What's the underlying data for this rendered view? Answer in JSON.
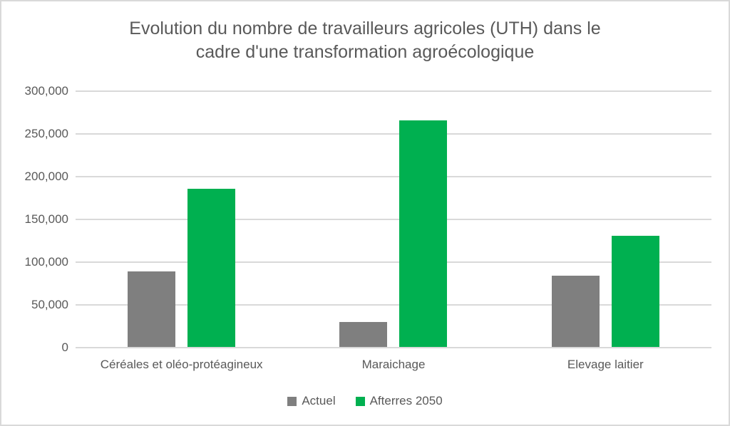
{
  "chart_data": {
    "type": "bar",
    "title": "Evolution du nombre de travailleurs agricoles (UTH) dans le cadre d'une transformation agroécologique",
    "title_lines": [
      "Evolution du nombre de travailleurs agricoles (UTH) dans le",
      "cadre d'une transformation agroécologique"
    ],
    "categories": [
      "Céréales et oléo-protéagineux",
      "Maraichage",
      "Elevage laitier"
    ],
    "series": [
      {
        "name": "Actuel",
        "color": "#7f7f7f",
        "values": [
          88000,
          29000,
          83000
        ]
      },
      {
        "name": "Afterres 2050",
        "color": "#00b050",
        "values": [
          185000,
          265000,
          130000
        ]
      }
    ],
    "xlabel": "",
    "ylabel": "",
    "ylim": [
      0,
      300000
    ],
    "ytick_step": 50000,
    "ytick_labels": [
      "0",
      "50,000",
      "100,000",
      "150,000",
      "200,000",
      "250,000",
      "300,000"
    ],
    "grid": true,
    "legend_position": "bottom"
  },
  "styles": {
    "text_color": "#595959",
    "gridline_color": "#d9d9d9",
    "background_color": "#ffffff",
    "border_color": "#d9d9d9"
  }
}
